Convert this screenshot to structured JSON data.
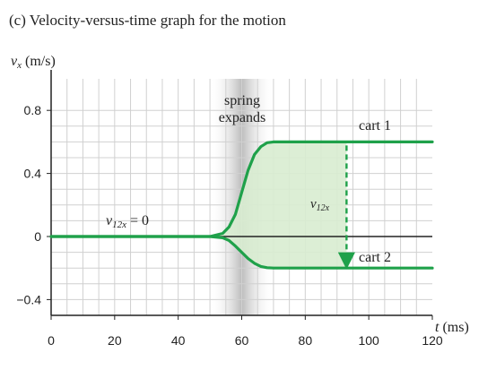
{
  "chart_data": {
    "type": "line",
    "title": "(c) Velocity-versus-time graph for the motion",
    "xlabel": "t (ms)",
    "ylabel": "vx (m/s)",
    "xlim": [
      0,
      120
    ],
    "ylim": [
      -0.4,
      0.8
    ],
    "xticks": [
      0,
      20,
      40,
      60,
      80,
      100,
      120
    ],
    "yticks": [
      0.8,
      0.4,
      0,
      -0.4
    ],
    "ytick_labels": [
      "0.8",
      "0.4",
      "0",
      "−0.4"
    ],
    "grid": true,
    "band": {
      "x_start": 50,
      "x_end": 70,
      "label": [
        "spring",
        "expands"
      ]
    },
    "series": [
      {
        "name": "cart 1",
        "x": [
          0,
          50,
          54,
          56,
          58,
          60,
          62,
          64,
          66,
          68,
          70,
          120
        ],
        "y": [
          0,
          0,
          0.02,
          0.06,
          0.14,
          0.28,
          0.42,
          0.52,
          0.57,
          0.595,
          0.6,
          0.6
        ]
      },
      {
        "name": "cart 2",
        "x": [
          0,
          50,
          54,
          56,
          58,
          60,
          62,
          64,
          66,
          68,
          70,
          120
        ],
        "y": [
          0,
          0,
          -0.008,
          -0.025,
          -0.06,
          -0.1,
          -0.14,
          -0.17,
          -0.19,
          -0.198,
          -0.2,
          -0.2
        ]
      }
    ],
    "annotations": {
      "v12x_zero": "v12x = 0",
      "v12x_label": "v12x",
      "v12x_arrow_x": 93
    },
    "colors": {
      "line": "#1fa14a",
      "fill": "#d8ecd0",
      "grid": "#d0d0d0",
      "axis": "#222222",
      "band": "#b5b5b5"
    }
  }
}
